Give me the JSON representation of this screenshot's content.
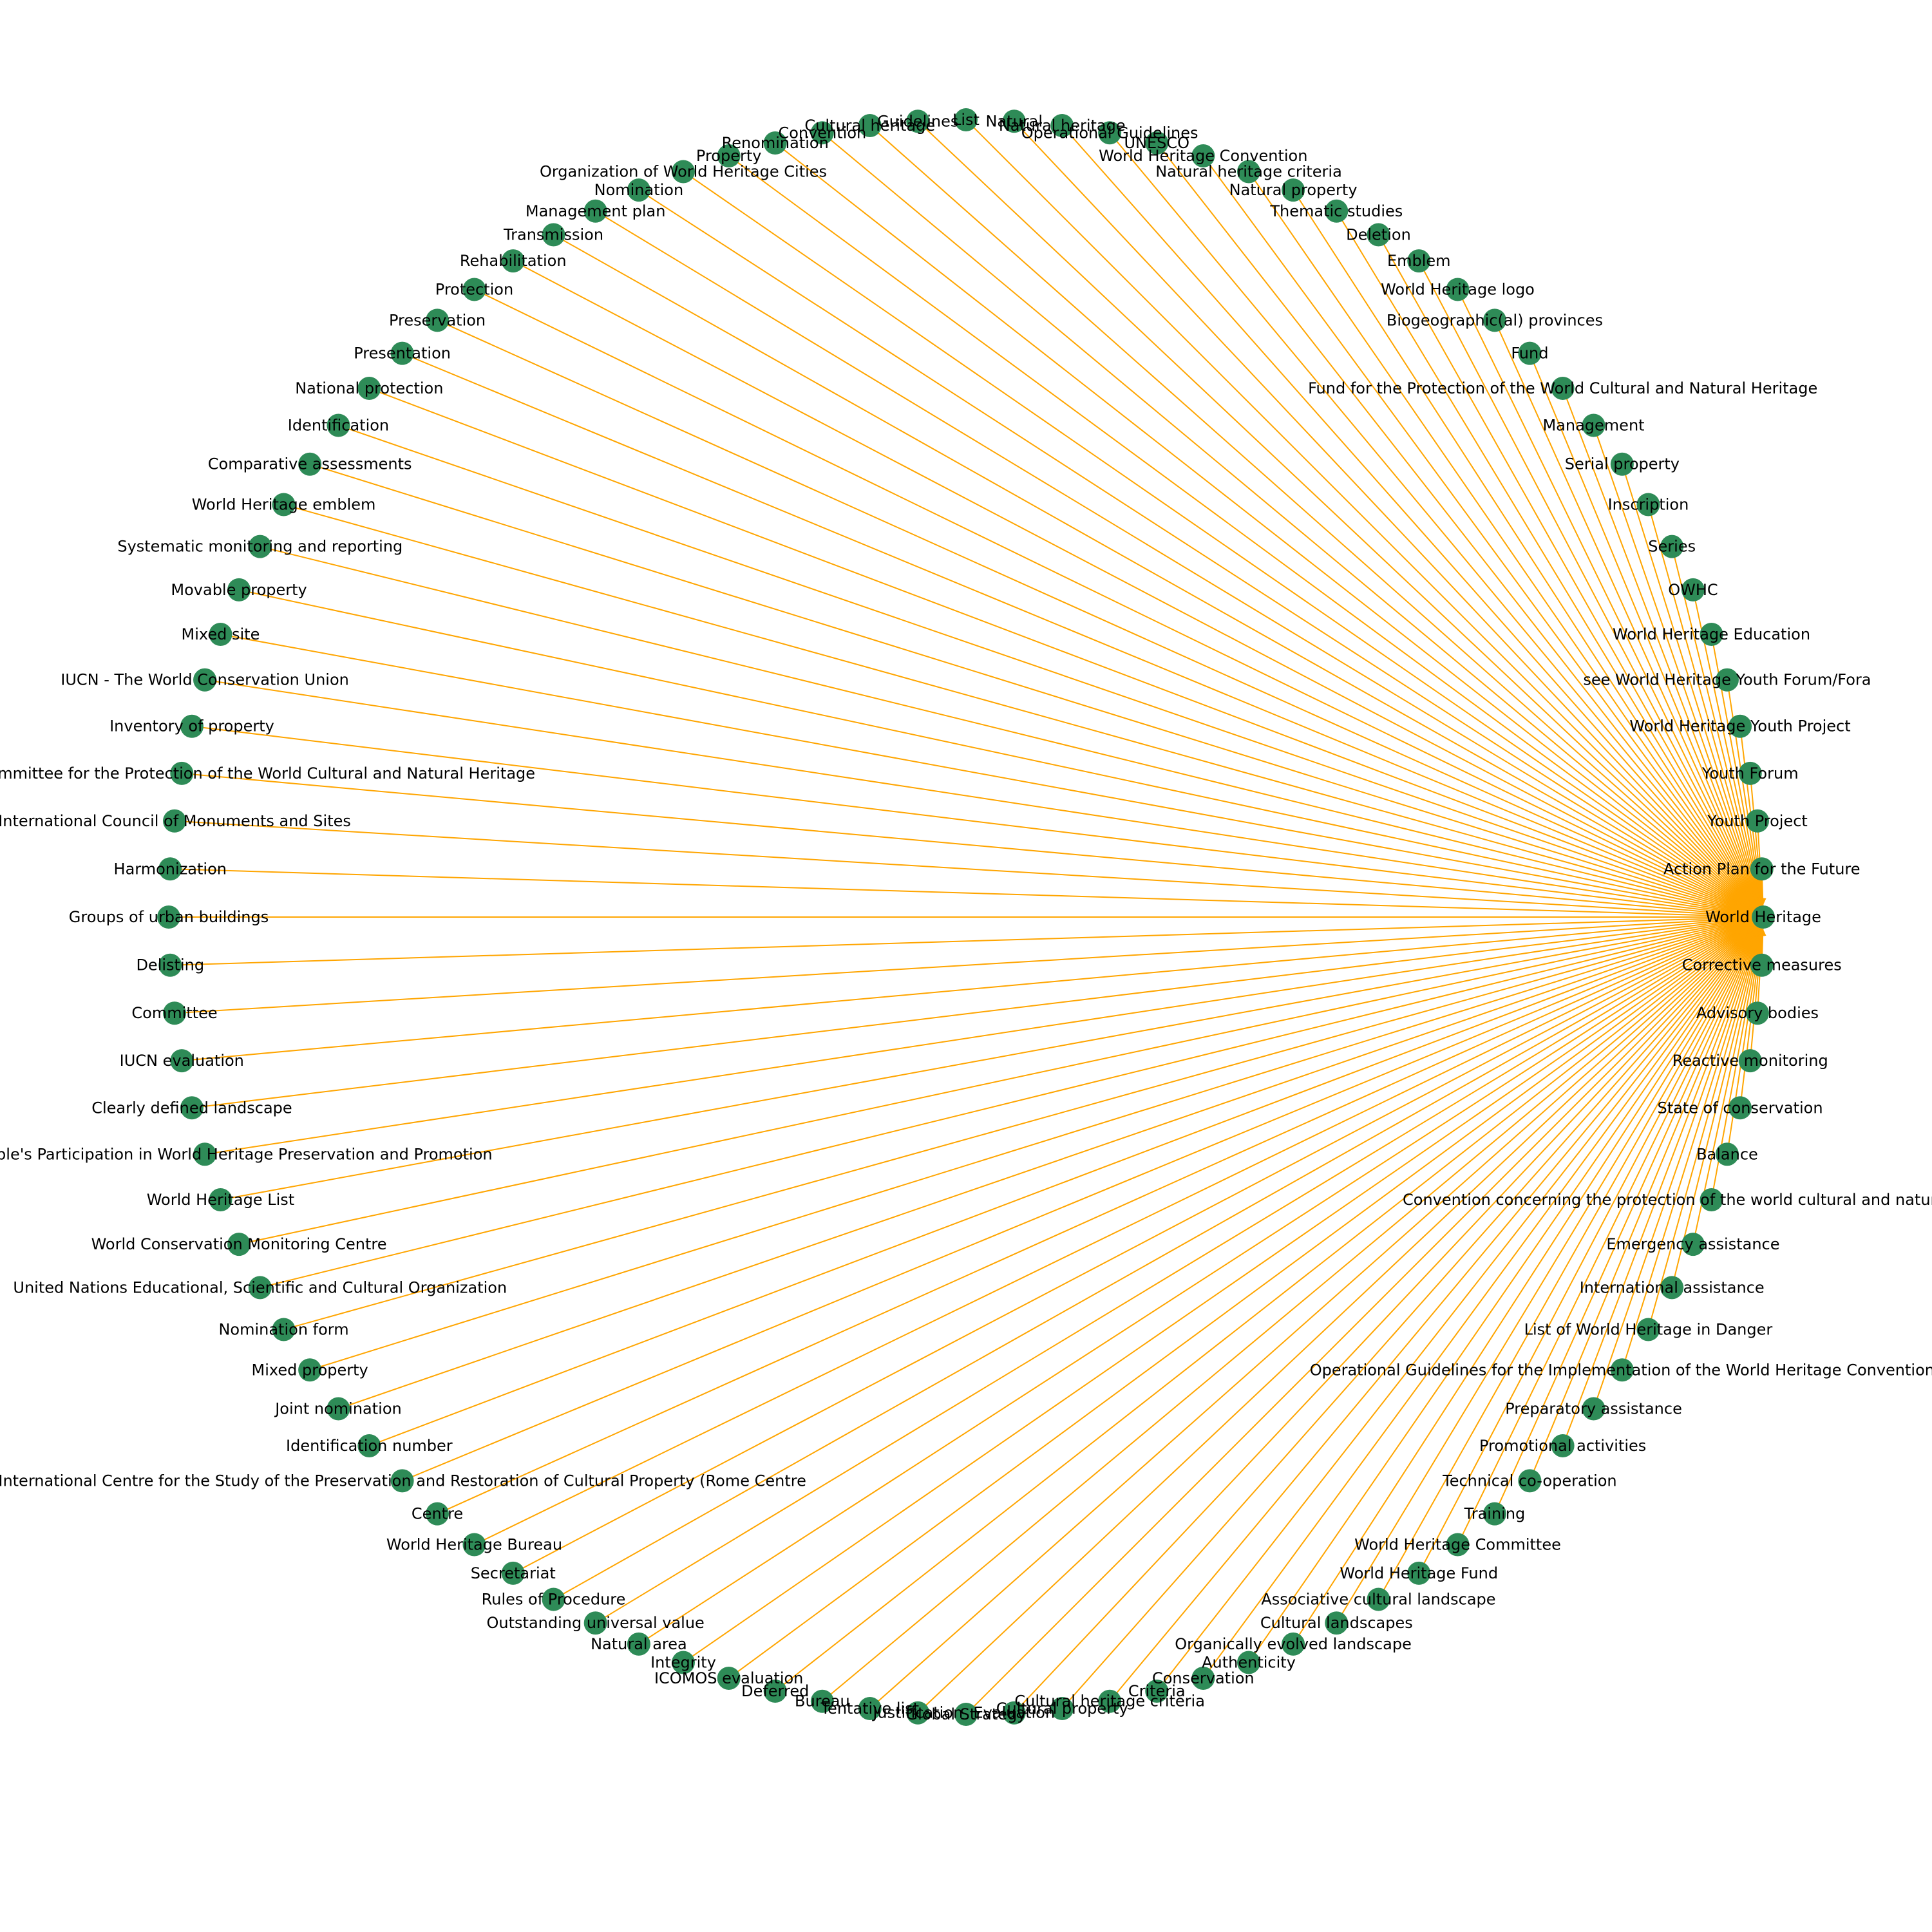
{
  "graph": {
    "edge_color": "#ffa500",
    "node_color": "#2e8b57",
    "label_color": "#000000",
    "hub": "World Heritage",
    "nodes": [
      "World Heritage",
      "Action Plan for the Future",
      "Youth Project",
      "Youth Forum",
      "World Heritage Youth Project",
      "see World Heritage Youth Forum/Fora",
      "World Heritage Education",
      "OWHC",
      "Series",
      "Inscription",
      "Serial property",
      "Management",
      "Fund for the Protection of the World Cultural and Natural Heritage",
      "Fund",
      "Biogeographic(al) provinces",
      "World Heritage logo",
      "Emblem",
      "Deletion",
      "Thematic studies",
      "Natural property",
      "Natural heritage criteria",
      "World Heritage Convention",
      "UNESCO",
      "Operational Guidelines",
      "Natural heritage",
      "Natural",
      "List",
      "Guidelines",
      "Cultural heritage",
      "Convention",
      "Renomination",
      "Property",
      "Organization of World Heritage Cities",
      "Nomination",
      "Management plan",
      "Transmission",
      "Rehabilitation",
      "Protection",
      "Preservation",
      "Presentation",
      "National protection",
      "Identification",
      "Comparative assessments",
      "World Heritage emblem",
      "Systematic monitoring and reporting",
      "Movable property",
      "Mixed site",
      "IUCN - The World Conservation Union",
      "Inventory of property",
      "Intergovernmental Committee for the Protection of the World Cultural and Natural Heritage",
      "International Council of Monuments and Sites",
      "Harmonization",
      "Groups of urban buildings",
      "Delisting",
      "Committee",
      "IUCN evaluation",
      "Clearly defined landscape",
      "Young People's Participation in World Heritage Preservation and Promotion",
      "World Heritage List",
      "World Conservation Monitoring Centre",
      "United Nations Educational, Scientific and Cultural Organization",
      "Nomination form",
      "Mixed property",
      "Joint nomination",
      "Identification number",
      "International Centre for the Study of the Preservation and Restoration of Cultural Property (Rome Centre",
      "Centre",
      "World Heritage Bureau",
      "Secretariat",
      "Rules of Procedure",
      "Outstanding universal value",
      "Natural area",
      "Integrity",
      "ICOMOS evaluation",
      "Deferred",
      "Bureau",
      "Tentative list",
      "Justification",
      "Global Strategy",
      "Evaluation",
      "Cultural property",
      "Cultural heritage criteria",
      "Criteria",
      "Conservation",
      "Authenticity",
      "Organically evolved landscape",
      "Cultural landscapes",
      "Associative cultural landscape",
      "World Heritage Fund",
      "World Heritage Committee",
      "Training",
      "Technical co-operation",
      "Promotional activities",
      "Preparatory assistance",
      "Operational Guidelines for the Implementation of the World Heritage Convention",
      "List of World Heritage in Danger",
      "International assistance",
      "Emergency assistance",
      "Convention concerning the protection of the world cultural and natural heritage",
      "Balance",
      "State of conservation",
      "Reactive monitoring",
      "Advisory bodies",
      "Corrective measures"
    ]
  }
}
